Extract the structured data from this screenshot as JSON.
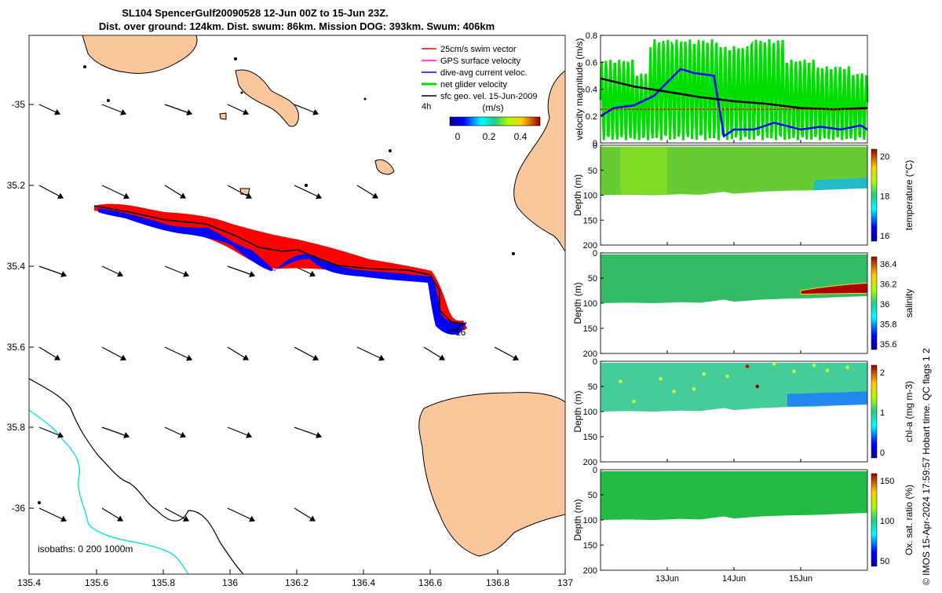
{
  "header": {
    "title_line1": "SL104 SpencerGulf20090528 12-Jun 00Z to 15-Jun 23Z.",
    "title_line2": "Dist. over ground: 124km. Dist. swum: 86km. Mission DOG: 393km. Swum: 406km"
  },
  "map": {
    "x_ticks": [
      "135.4",
      "135.6",
      "135.8",
      "136",
      "136.2",
      "136.4",
      "136.6",
      "136.8",
      "137"
    ],
    "y_ticks": [
      "-35",
      "35.2",
      "35.4",
      "35.6",
      "35.8",
      "-36"
    ],
    "legend": [
      {
        "label": "25cm/s swim vector",
        "color": "#ff0000"
      },
      {
        "label": "GPS surface velocity",
        "color": "#ff00ff"
      },
      {
        "label": "dive-avg current veloc.",
        "color": "#0000ff"
      },
      {
        "label": "net glider velocity",
        "color": "#00dd00"
      },
      {
        "label": "sfc geo. vel. 15-Jun-2009",
        "color": "#000000"
      }
    ],
    "legend_4h": "4h",
    "colorbar_label": "(m/s)",
    "colorbar_ticks": [
      "0",
      "0.2",
      "0.4"
    ],
    "track_label": "16",
    "isobaths_label": "isobaths: 0   200  1000m",
    "land_color": "#f9c79b",
    "isobath_1000_color": "#22dddd"
  },
  "chart_data": [
    {
      "type": "line",
      "ylabel": "velocity magnitude (m/s)",
      "ylim": [
        0,
        0.8
      ],
      "y_ticks": [
        "0",
        "0.2",
        "0.4",
        "0.6",
        "0.8"
      ],
      "x_ticks": [
        "13Jun",
        "14Jun",
        "15Jun"
      ],
      "series": [
        {
          "color": "#00dd00",
          "x": [
            12.0,
            12.25,
            12.5,
            12.75,
            13.0,
            13.25,
            13.5,
            13.75,
            14.0,
            14.25,
            14.5,
            14.75,
            15.0,
            15.25,
            15.5,
            15.75,
            16.0
          ],
          "values": [
            0.1,
            0.6,
            0.2,
            0.5,
            0.75,
            0.05,
            0.75,
            0.05,
            0.7,
            0.05,
            0.75,
            0.1,
            0.6,
            0.1,
            0.55,
            0.1,
            0.5
          ]
        },
        {
          "color": "#0000ff",
          "x": [
            12.0,
            12.2,
            12.5,
            12.8,
            13.0,
            13.2,
            13.4,
            13.7,
            13.85,
            14.0,
            14.3,
            14.6,
            15.0,
            15.3,
            15.6,
            15.9,
            16.0
          ],
          "values": [
            0.2,
            0.26,
            0.28,
            0.35,
            0.45,
            0.55,
            0.52,
            0.5,
            0.05,
            0.1,
            0.1,
            0.15,
            0.1,
            0.12,
            0.1,
            0.13,
            0.1
          ]
        },
        {
          "color": "#000000",
          "x": [
            12.0,
            12.5,
            13.0,
            13.5,
            14.0,
            14.5,
            15.0,
            15.5,
            16.0
          ],
          "values": [
            0.48,
            0.42,
            0.38,
            0.34,
            0.31,
            0.29,
            0.26,
            0.25,
            0.26
          ]
        },
        {
          "color": "#ff0000",
          "x": [
            12.0,
            16.0
          ],
          "values": [
            0.25,
            0.25
          ]
        }
      ]
    },
    {
      "type": "heatmap",
      "ylabel": "Depth (m)",
      "y_ticks": [
        "0",
        "50",
        "100",
        "150",
        "200"
      ],
      "colorbar_label": "temperature (°C)",
      "colorbar_ticks": [
        "16",
        "18",
        "20"
      ],
      "x_ticks": [
        "13Jun",
        "14Jun",
        "15Jun"
      ]
    },
    {
      "type": "heatmap",
      "ylabel": "Depth (m)",
      "y_ticks": [
        "0",
        "50",
        "100",
        "150",
        "200"
      ],
      "colorbar_label": "salinity",
      "colorbar_ticks": [
        "35.6",
        "35.8",
        "36",
        "36.2",
        "36.4"
      ],
      "x_ticks": [
        "13Jun",
        "14Jun",
        "15Jun"
      ]
    },
    {
      "type": "heatmap",
      "ylabel": "Depth (m)",
      "y_ticks": [
        "0",
        "50",
        "100",
        "150",
        "200"
      ],
      "colorbar_label": "chl-a (mg m-3)",
      "colorbar_ticks": [
        "0",
        "1",
        "2"
      ],
      "x_ticks": [
        "13Jun",
        "14Jun",
        "15Jun"
      ]
    },
    {
      "type": "heatmap",
      "ylabel": "Depth (m)",
      "y_ticks": [
        "0",
        "50",
        "100",
        "150",
        "200"
      ],
      "colorbar_label": "Ox. sat. ratio (%)",
      "colorbar_ticks": [
        "50",
        "100",
        "150"
      ],
      "x_ticks": [
        "13Jun",
        "14Jun",
        "15Jun"
      ]
    }
  ],
  "footer": {
    "credit": "© IMOS 15-Apr-2024 17:59:57 Hobart time. QC flags 1  2"
  }
}
